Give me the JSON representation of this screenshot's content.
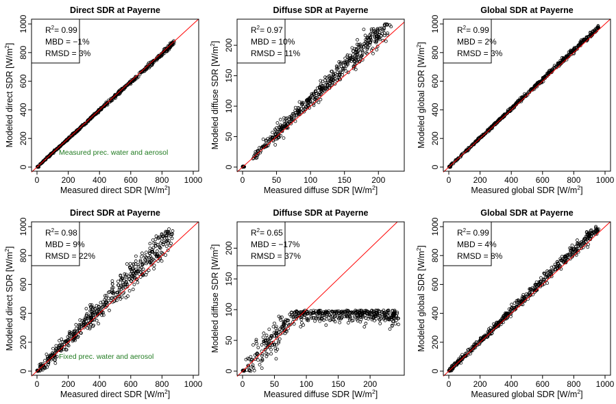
{
  "colors": {
    "one_to_one_line": "#ff0000",
    "points": "#000000",
    "note_text": "#1f7a1f",
    "frame": "#000000"
  },
  "notes": [
    "Measured prec. water and aerosol",
    "Fixed prec. water and aerosol"
  ],
  "chart_data": [
    {
      "type": "scatter",
      "title": "Direct SDR at Payerne",
      "xlabel": "Measured direct SDR [W/m²]",
      "ylabel": "Modeled direct SDR [W/m²]",
      "xlim": [
        0,
        1000
      ],
      "ylim": [
        0,
        1000
      ],
      "xticks": [
        0,
        200,
        400,
        600,
        800,
        1000
      ],
      "yticks": [
        0,
        200,
        400,
        600,
        800,
        1000
      ],
      "stats": {
        "r2": "0.99",
        "mbd": "−1%",
        "rmsd": "3%"
      },
      "note": "Measured prec. water and aerosol",
      "reference_line": "1:1",
      "scatter_shape": {
        "x_range": [
          0,
          880
        ],
        "slope": 0.99,
        "spread": 6
      }
    },
    {
      "type": "scatter",
      "title": "Diffuse SDR at Payerne",
      "xlabel": "Measured diffuse SDR [W/m²]",
      "ylabel": "Modeled diffuse SDR [W/m²]",
      "xlim": [
        0,
        230
      ],
      "ylim": [
        0,
        235
      ],
      "xticks": [
        0,
        50,
        100,
        150,
        200
      ],
      "yticks": [
        0,
        50,
        100,
        150,
        200
      ],
      "stats": {
        "r2": "0.97",
        "mbd": "10%",
        "rmsd": "11%"
      },
      "note": "",
      "reference_line": "1:1",
      "scatter_shape": {
        "x_range": [
          15,
          220
        ],
        "slope": 1.1,
        "spread": 8
      }
    },
    {
      "type": "scatter",
      "title": "Global SDR at Payerne",
      "xlabel": "Measured global SDR [W/m²]",
      "ylabel": "Modeled global SDR [W/m²]",
      "xlim": [
        0,
        1000
      ],
      "ylim": [
        0,
        1000
      ],
      "xticks": [
        0,
        200,
        400,
        600,
        800,
        1000
      ],
      "yticks": [
        0,
        200,
        400,
        600,
        800,
        1000
      ],
      "stats": {
        "r2": "0.99",
        "mbd": "2%",
        "rmsd": "3%"
      },
      "note": "",
      "reference_line": "1:1",
      "scatter_shape": {
        "x_range": [
          0,
          960
        ],
        "slope": 1.02,
        "spread": 7
      }
    },
    {
      "type": "scatter",
      "title": "Direct SDR at Payerne",
      "xlabel": "Measured direct SDR [W/m²]",
      "ylabel": "Modeled direct SDR [W/m²]",
      "xlim": [
        0,
        1000
      ],
      "ylim": [
        0,
        1000
      ],
      "xticks": [
        0,
        200,
        400,
        600,
        800,
        1000
      ],
      "yticks": [
        0,
        200,
        400,
        600,
        800,
        1000
      ],
      "stats": {
        "r2": "0.98",
        "mbd": "9%",
        "rmsd": "22%"
      },
      "note": "Fixed prec. water and aerosol",
      "reference_line": "1:1",
      "scatter_shape": {
        "x_range": [
          0,
          870
        ],
        "slope": 1.09,
        "spread": 45
      }
    },
    {
      "type": "scatter",
      "title": "Diffuse SDR at Payerne",
      "xlabel": "Measured diffuse SDR [W/m²]",
      "ylabel": "Modeled diffuse SDR [W/m²]",
      "xlim": [
        0,
        245
      ],
      "ylim": [
        0,
        235
      ],
      "xticks": [
        0,
        50,
        100,
        150,
        200
      ],
      "yticks": [
        0,
        50,
        100,
        150,
        200
      ],
      "stats": {
        "r2": "0.65",
        "mbd": "−17%",
        "rmsd": "37%"
      },
      "note": "",
      "reference_line": "1:1",
      "scatter_shape": {
        "x_range": [
          5,
          245
        ],
        "saturation": 95,
        "spread": 8
      }
    },
    {
      "type": "scatter",
      "title": "Global SDR at Payerne",
      "xlabel": "Measured global SDR [W/m²]",
      "ylabel": "Modeled global SDR [W/m²]",
      "xlim": [
        0,
        1000
      ],
      "ylim": [
        0,
        1000
      ],
      "xticks": [
        0,
        200,
        400,
        600,
        800,
        1000
      ],
      "yticks": [
        0,
        200,
        400,
        600,
        800,
        1000
      ],
      "stats": {
        "r2": "0.99",
        "mbd": "4%",
        "rmsd": "8%"
      },
      "note": "",
      "reference_line": "1:1",
      "scatter_shape": {
        "x_range": [
          0,
          960
        ],
        "slope": 1.04,
        "spread": 18
      }
    }
  ]
}
